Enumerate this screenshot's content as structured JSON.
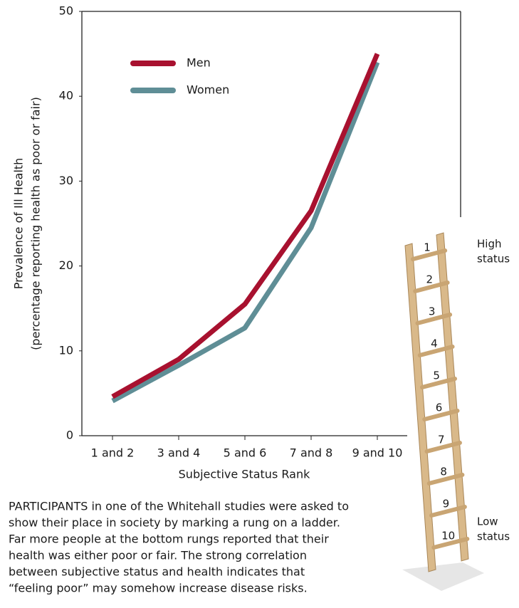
{
  "chart_data": {
    "type": "line",
    "y_label": [
      "Prevalence of Ill Health",
      "(percentage reporting health as poor or fair)"
    ],
    "x_label": "Subjective Status Rank",
    "categories": [
      "1 and 2",
      "3 and 4",
      "5 and 6",
      "7 and 8",
      "9 and 10"
    ],
    "series": [
      {
        "name": "Men",
        "color": "#a8112f",
        "values": [
          4.6,
          9,
          15.5,
          26.5,
          45
        ]
      },
      {
        "name": "Women",
        "color": "#5f8e96",
        "values": [
          4.1,
          8.3,
          12.7,
          24.5,
          44
        ]
      }
    ],
    "ylim": [
      0,
      50
    ],
    "yticks": [
      0,
      10,
      20,
      30,
      40,
      50
    ],
    "grid": false,
    "legend": "upper left"
  },
  "caption": [
    "PARTICIPANTS in one of the Whitehall studies were asked to",
    "show their place in society by marking a rung on a ladder.",
    "Far more people at the bottom rungs reported that their",
    "health was either poor or fair. The strong correlation",
    "between subjective status and health indicates that",
    "“feeling poor” may somehow increase disease risks."
  ],
  "ladder": {
    "rungs": [
      "1",
      "2",
      "3",
      "4",
      "5",
      "6",
      "7",
      "8",
      "9",
      "10"
    ],
    "top_label": [
      "High",
      "status"
    ],
    "bottom_label": [
      "Low",
      "status"
    ]
  }
}
